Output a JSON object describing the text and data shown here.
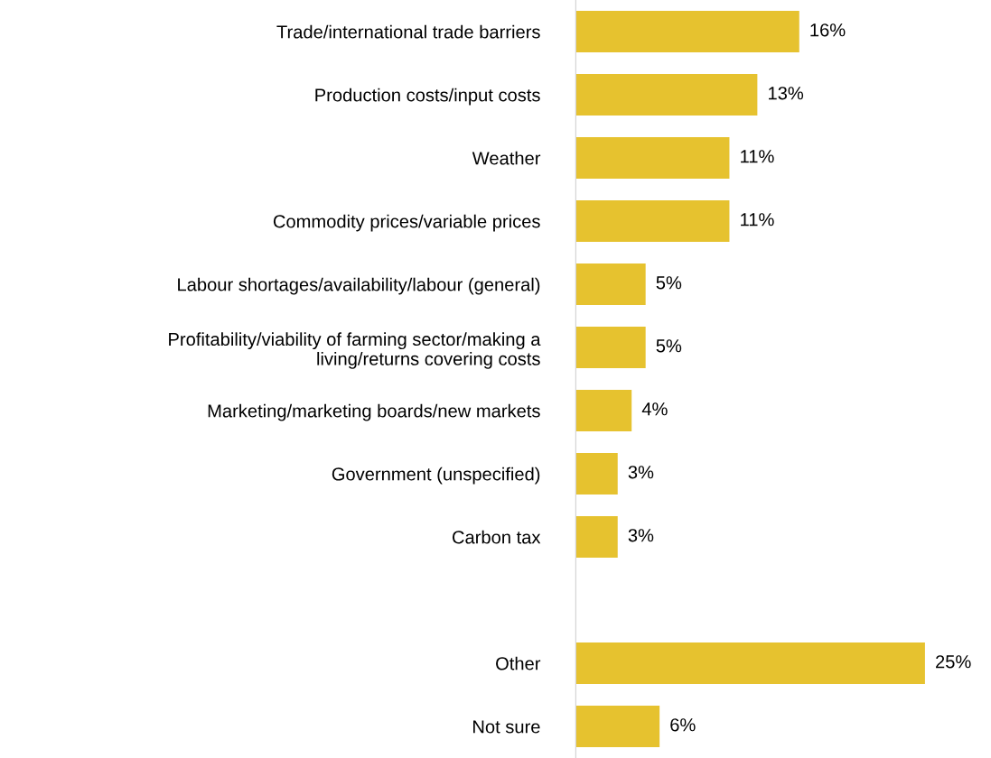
{
  "chart_data": {
    "type": "bar",
    "orientation": "horizontal",
    "categories": [
      "Trade/international trade barriers",
      "Production costs/input costs",
      "Weather",
      "Commodity prices/variable prices",
      "Labour shortages/availability/labour (general)",
      "Profitability/viability of farming sector/making a\nliving/returns covering costs",
      "Marketing/marketing boards/new markets",
      "Government (unspecified)",
      "Carbon tax",
      null,
      "Other",
      "Not sure"
    ],
    "values": [
      16,
      13,
      11,
      11,
      5,
      5,
      4,
      3,
      3,
      null,
      25,
      6
    ],
    "value_labels": [
      "16%",
      "13%",
      "11%",
      "11%",
      "5%",
      "5%",
      "4%",
      "3%",
      "3%",
      null,
      "25%",
      "6%"
    ],
    "color": "#e6c22f",
    "grid": false,
    "legend": false,
    "tick_labels": "y"
  }
}
